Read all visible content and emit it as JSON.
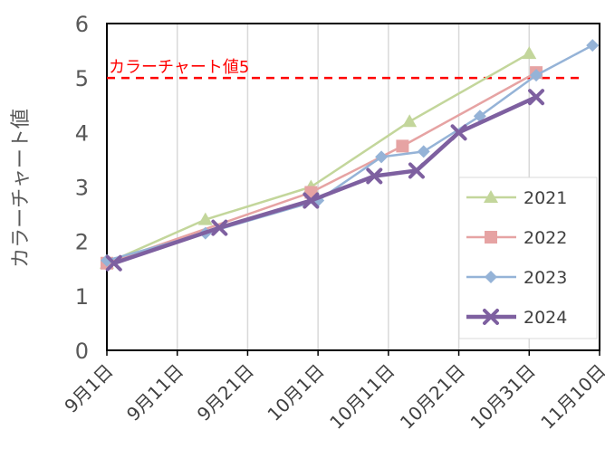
{
  "chart_data": {
    "type": "line",
    "ylabel": "カラーチャート値",
    "xlabel": "",
    "title": "",
    "ylim": [
      0,
      6
    ],
    "yticks": [
      0,
      1,
      2,
      3,
      4,
      5,
      6
    ],
    "xlim": [
      "2024-09-01",
      "2024-11-10"
    ],
    "xticks": [
      {
        "date": "2024-09-01",
        "label": "9月1日"
      },
      {
        "date": "2024-09-11",
        "label": "9月11日"
      },
      {
        "date": "2024-09-21",
        "label": "9月21日"
      },
      {
        "date": "2024-10-01",
        "label": "10月1日"
      },
      {
        "date": "2024-10-11",
        "label": "10月11日"
      },
      {
        "date": "2024-10-21",
        "label": "10月21日"
      },
      {
        "date": "2024-10-31",
        "label": "10月31日"
      },
      {
        "date": "2024-11-10",
        "label": "11月10日"
      }
    ],
    "grid": {
      "vertical": true,
      "horizontal": false
    },
    "legend_position": "bottom-right",
    "reference_line": {
      "y": 5,
      "label": "カラーチャート値5",
      "color": "#ff0000"
    },
    "series": [
      {
        "name": "2021",
        "color": "#c3d69b",
        "marker": "triangle",
        "points": [
          [
            "2024-09-01",
            1.6
          ],
          [
            "2024-09-15",
            2.4
          ],
          [
            "2024-09-30",
            3.0
          ],
          [
            "2024-10-14",
            4.2
          ],
          [
            "2024-10-31",
            5.45
          ]
        ]
      },
      {
        "name": "2022",
        "color": "#e6a3a3",
        "marker": "square",
        "points": [
          [
            "2024-09-01",
            1.6
          ],
          [
            "2024-09-30",
            2.9
          ],
          [
            "2024-10-13",
            3.75
          ],
          [
            "2024-11-01",
            5.1
          ]
        ]
      },
      {
        "name": "2023",
        "color": "#95b3d7",
        "marker": "diamond",
        "points": [
          [
            "2024-09-01",
            1.65
          ],
          [
            "2024-09-15",
            2.15
          ],
          [
            "2024-10-01",
            2.75
          ],
          [
            "2024-10-10",
            3.55
          ],
          [
            "2024-10-16",
            3.65
          ],
          [
            "2024-10-24",
            4.3
          ],
          [
            "2024-11-01",
            5.05
          ],
          [
            "2024-11-09",
            5.6
          ]
        ]
      },
      {
        "name": "2024",
        "color": "#7e60a0",
        "marker": "x",
        "points": [
          [
            "2024-09-02",
            1.6
          ],
          [
            "2024-09-17",
            2.25
          ],
          [
            "2024-09-30",
            2.75
          ],
          [
            "2024-10-09",
            3.2
          ],
          [
            "2024-10-15",
            3.3
          ],
          [
            "2024-10-21",
            4.0
          ],
          [
            "2024-11-01",
            4.65
          ]
        ]
      }
    ]
  }
}
